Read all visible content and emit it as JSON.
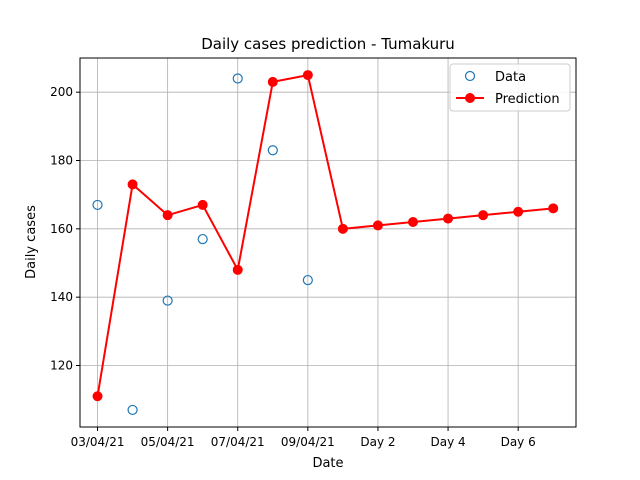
{
  "chart_data": {
    "type": "line",
    "title": "Daily cases prediction - Tumakuru",
    "xlabel": "Date",
    "ylabel": "Daily cases",
    "x_positions": [
      0,
      1,
      2,
      3,
      4,
      5,
      6,
      7,
      8,
      9,
      10,
      11,
      12,
      13
    ],
    "x_ticks": [
      {
        "pos": 0,
        "label": "03/04/21"
      },
      {
        "pos": 2,
        "label": "05/04/21"
      },
      {
        "pos": 4,
        "label": "07/04/21"
      },
      {
        "pos": 6,
        "label": "09/04/21"
      },
      {
        "pos": 8,
        "label": "Day 2"
      },
      {
        "pos": 10,
        "label": "Day 4"
      },
      {
        "pos": 12,
        "label": "Day 6"
      }
    ],
    "y_ticks": [
      120,
      140,
      160,
      180,
      200
    ],
    "xlim": [
      -0.5,
      13.65
    ],
    "ylim": [
      102,
      210
    ],
    "grid": true,
    "legend_position": "top-right",
    "series": [
      {
        "name": "Data",
        "style": "markers-hollow",
        "color": "#1f77b4",
        "x": [
          0,
          1,
          2,
          3,
          4,
          5,
          6
        ],
        "values": [
          167,
          107,
          139,
          157,
          204,
          183,
          145
        ]
      },
      {
        "name": "Prediction",
        "style": "line-markers",
        "color": "#ff0000",
        "x": [
          0,
          1,
          2,
          3,
          4,
          5,
          6,
          7,
          8,
          9,
          10,
          11,
          12,
          13
        ],
        "values": [
          111,
          173,
          164,
          167,
          148,
          203,
          205,
          160,
          161,
          162,
          163,
          164,
          165,
          166
        ]
      }
    ]
  }
}
